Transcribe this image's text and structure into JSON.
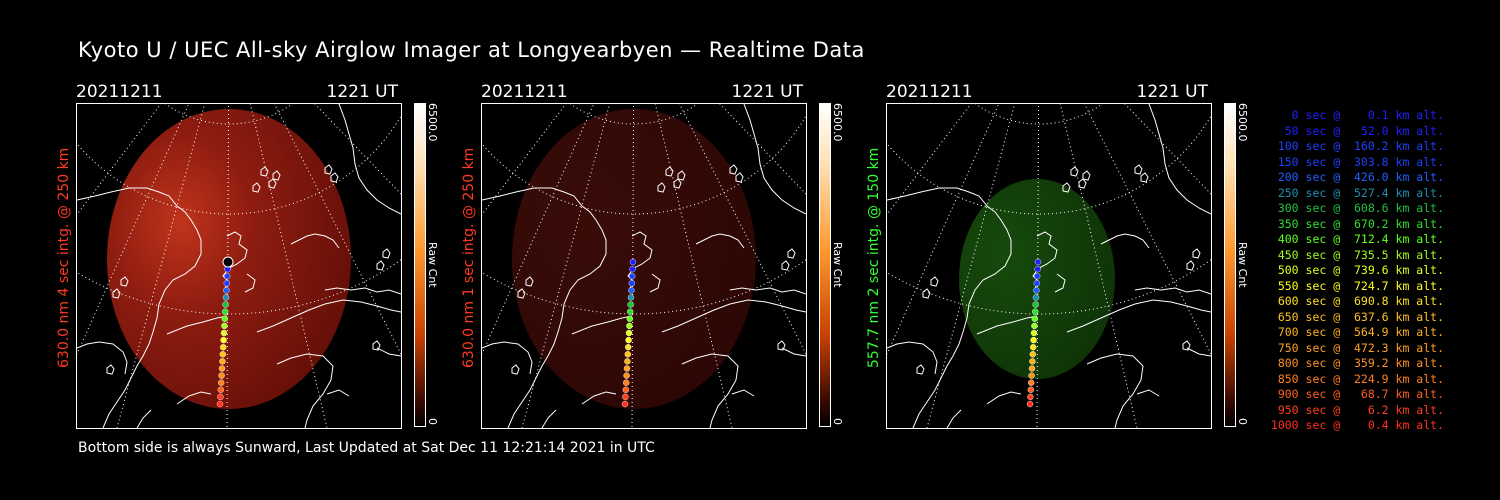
{
  "title": "Kyoto U / UEC All-sky Airglow Imager at Longyearbyen — Realtime Data",
  "footer": "Bottom side is always Sunward, Last Updated at Sat Dec 11 12:21:14 2021 in UTC",
  "panels": [
    {
      "date": "20211211",
      "time": "1221 UT",
      "ylabel": "630.0 nm 4 sec intg. @ 250 km",
      "ylabel_color": "#ff3a20",
      "cbar_max": "6500.0",
      "cbar_min": "0",
      "cbar_label": "Raw Cnt",
      "tint": "red",
      "intensity": "bright"
    },
    {
      "date": "20211211",
      "time": "1221 UT",
      "ylabel": "630.0 nm 1 sec intg. @ 250 km",
      "ylabel_color": "#ff3a20",
      "cbar_max": "6500.0",
      "cbar_min": "0",
      "cbar_label": "Raw Cnt",
      "tint": "red",
      "intensity": "dim"
    },
    {
      "date": "20211211",
      "time": "1221 UT",
      "ylabel": "557.7 nm 2 sec intg. @ 150 km",
      "ylabel_color": "#33ff33",
      "cbar_max": "6500.0",
      "cbar_min": "0",
      "cbar_label": "Raw Cnt",
      "tint": "green",
      "intensity": "dim"
    }
  ],
  "legend": [
    {
      "text": "   0 sec @    0.1 km alt.",
      "color": "#2020ff"
    },
    {
      "text": "  50 sec @   52.0 km alt.",
      "color": "#2020ff"
    },
    {
      "text": " 100 sec @  160.2 km alt.",
      "color": "#2040ff"
    },
    {
      "text": " 150 sec @  303.8 km alt.",
      "color": "#2040ff"
    },
    {
      "text": " 200 sec @  426.0 km alt.",
      "color": "#2060ff"
    },
    {
      "text": " 250 sec @  527.4 km alt.",
      "color": "#2090b0"
    },
    {
      "text": " 300 sec @  608.6 km alt.",
      "color": "#20c040"
    },
    {
      "text": " 350 sec @  670.2 km alt.",
      "color": "#30e030"
    },
    {
      "text": " 400 sec @  712.4 km alt.",
      "color": "#60ff20"
    },
    {
      "text": " 450 sec @  735.5 km alt.",
      "color": "#a0ff20"
    },
    {
      "text": " 500 sec @  739.6 km alt.",
      "color": "#e0ff20"
    },
    {
      "text": " 550 sec @  724.7 km alt.",
      "color": "#ffff20"
    },
    {
      "text": " 600 sec @  690.8 km alt.",
      "color": "#ffe020"
    },
    {
      "text": " 650 sec @  637.6 km alt.",
      "color": "#ffc020"
    },
    {
      "text": " 700 sec @  564.9 km alt.",
      "color": "#ffb020"
    },
    {
      "text": " 750 sec @  472.3 km alt.",
      "color": "#ffa020"
    },
    {
      "text": " 800 sec @  359.2 km alt.",
      "color": "#ff9020"
    },
    {
      "text": " 850 sec @  224.9 km alt.",
      "color": "#ff8020"
    },
    {
      "text": " 900 sec @   68.7 km alt.",
      "color": "#ff6020"
    },
    {
      "text": " 950 sec @    6.2 km alt.",
      "color": "#ff4020"
    },
    {
      "text": "1000 sec @    0.4 km alt.",
      "color": "#ff3020"
    }
  ]
}
